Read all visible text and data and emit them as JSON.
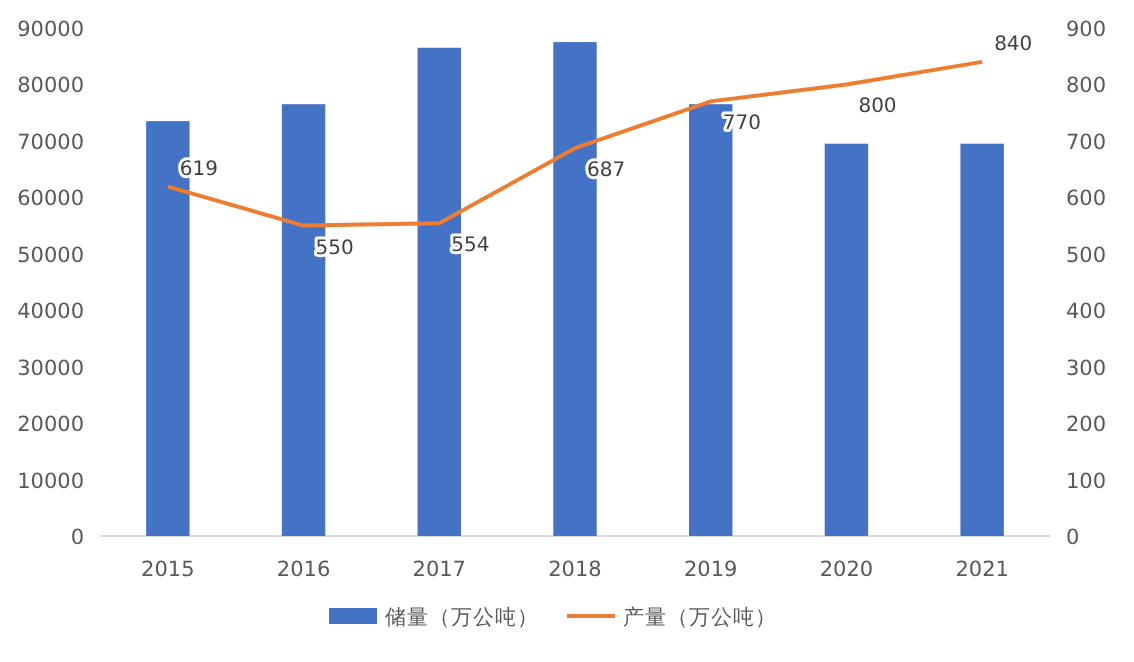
{
  "chart_data": {
    "type": "bar",
    "categories": [
      "2015",
      "2016",
      "2017",
      "2018",
      "2019",
      "2020",
      "2021"
    ],
    "series": [
      {
        "name": "储量（万公吨）",
        "color": "#4472c4",
        "values": [
          73500,
          76500,
          86500,
          87500,
          76500,
          69500,
          69500
        ]
      },
      {
        "name": "产量（万公吨）",
        "type": "line",
        "axis": "y2",
        "color": "#ed7d31",
        "marker": "none",
        "values": [
          619,
          550,
          554,
          687,
          770,
          800,
          840
        ],
        "value_labels": [
          "619",
          "550",
          "554",
          "687",
          "770",
          "800",
          "840"
        ]
      }
    ],
    "ylim": [
      0,
      90000
    ],
    "yticks": [
      0,
      10000,
      20000,
      30000,
      40000,
      50000,
      60000,
      70000,
      80000,
      90000
    ],
    "y2lim": [
      0,
      900
    ],
    "y2ticks": [
      0,
      100,
      200,
      300,
      400,
      500,
      600,
      700,
      800,
      900
    ],
    "grid": false,
    "legend": "bottom"
  }
}
